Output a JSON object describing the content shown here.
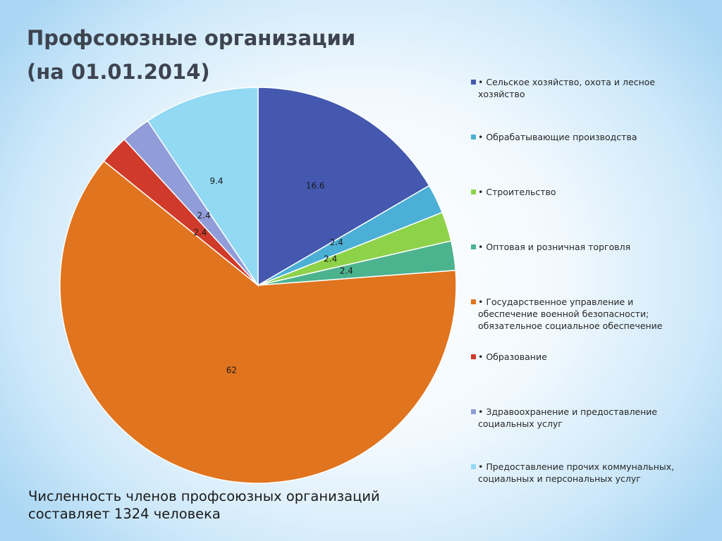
{
  "slide": {
    "title_line1": "Профсоюзные организации",
    "title_line2": "(на 01.01.2014)",
    "footer_line1": "Численность членов профсоюзных организаций",
    "footer_line2": "составляет 1324 человека"
  },
  "chart_data": {
    "type": "pie",
    "title": "",
    "legend_position": "right",
    "series": [
      {
        "values": [
          16.6,
          2.4,
          2.4,
          2.4,
          62,
          2.4,
          2.4,
          9.4
        ],
        "data_labels": [
          "16.6",
          "2.4",
          "2.4",
          "2.4",
          "62",
          "2.4",
          "2.4",
          "9.4"
        ]
      }
    ],
    "categories": [
      "• Сельское хозяйство, охота и лесное хозяйство",
      "• Обрабатывающие производства",
      "• Строительство",
      "• Оптовая и розничная торговля",
      "• Государственное управление и обеспечение военной безопасности; обязательное социальное обеспечение",
      "• Образование",
      "• Здравоохранение и предоставление социальных услуг",
      "• Предоставление прочих коммунальных, социальных и персональных услуг"
    ],
    "legend_lines": [
      [
        "• Сельское хозяйство, охота и лесное",
        "хозяйство"
      ],
      [
        "• Обрабатывающие производства"
      ],
      [
        "• Строительство"
      ],
      [
        "• Оптовая и розничная торговля"
      ],
      [
        "• Государственное управление и",
        "обеспечение военной безопасности;",
        "обязательное социальное обеспечение"
      ],
      [
        "• Образование"
      ],
      [
        "• Здравоохранение и предоставление",
        "социальных услуг"
      ],
      [
        "• Предоставление прочих коммунальных,",
        "социальных и персональных услуг"
      ]
    ],
    "colors": [
      "#4458b0",
      "#4bafd6",
      "#8ed24a",
      "#4cb38f",
      "#e0741f",
      "#d03a2a",
      "#919dd8",
      "#92d9f3"
    ]
  }
}
